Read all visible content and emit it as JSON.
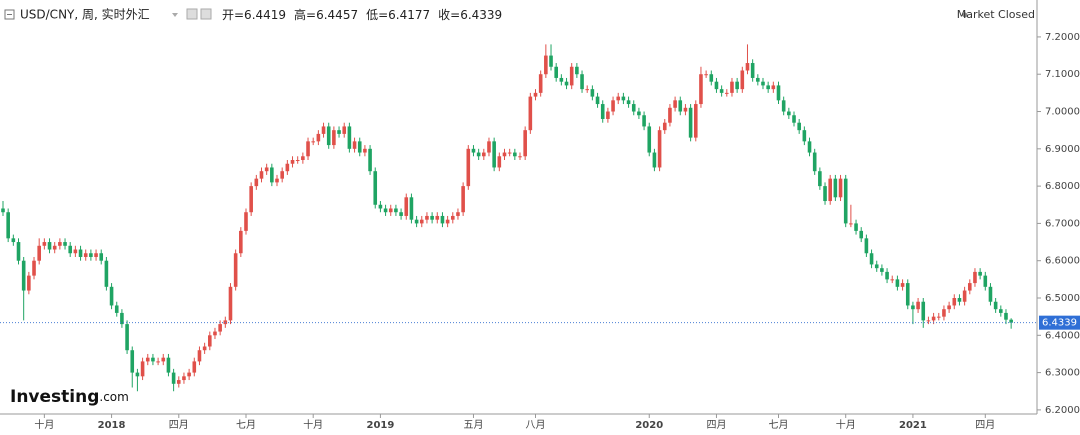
{
  "chart_data": {
    "type": "candlestick",
    "title": "USD/CNY, 周, 实时外汇",
    "ohlc_labels": [
      "开=6.4419",
      "高=6.4457",
      "低=6.4177",
      "收=6.4339"
    ],
    "status": "Market Closed",
    "logo": [
      "Investing",
      ".com"
    ],
    "last_price": 6.4339,
    "up_color": "#e0504a",
    "down_color": "#1fa463",
    "ylim": [
      6.189,
      7.299
    ],
    "yticks": [
      {
        "value": 6.2,
        "label": "6.2000"
      },
      {
        "value": 6.3,
        "label": "6.3000"
      },
      {
        "value": 6.4,
        "label": "6.4000"
      },
      {
        "value": 6.5,
        "label": "6.5000"
      },
      {
        "value": 6.6,
        "label": "6.6000"
      },
      {
        "value": 6.7,
        "label": "6.7000"
      },
      {
        "value": 6.8,
        "label": "6.8000"
      },
      {
        "value": 6.9,
        "label": "6.9000"
      },
      {
        "value": 7.0,
        "label": "7.0000"
      },
      {
        "value": 7.1,
        "label": "7.1000"
      },
      {
        "value": 7.2,
        "label": "7.2000"
      }
    ],
    "categories": [
      null,
      null,
      null,
      null,
      null,
      null,
      null,
      null,
      "十月",
      null,
      null,
      null,
      null,
      null,
      null,
      null,
      null,
      null,
      null,
      null,
      null,
      "2018",
      null,
      null,
      null,
      null,
      null,
      null,
      null,
      null,
      null,
      null,
      null,
      null,
      "四月",
      null,
      null,
      null,
      null,
      null,
      null,
      null,
      null,
      null,
      null,
      null,
      null,
      "七月",
      null,
      null,
      null,
      null,
      null,
      null,
      null,
      null,
      null,
      null,
      null,
      null,
      "十月",
      null,
      null,
      null,
      null,
      null,
      null,
      null,
      null,
      null,
      null,
      null,
      null,
      "2019",
      null,
      null,
      null,
      null,
      null,
      null,
      null,
      null,
      null,
      null,
      null,
      null,
      null,
      null,
      null,
      null,
      null,
      "五月",
      null,
      null,
      null,
      null,
      null,
      null,
      null,
      null,
      null,
      null,
      null,
      "八月",
      null,
      null,
      null,
      null,
      null,
      null,
      null,
      null,
      null,
      null,
      null,
      null,
      null,
      null,
      null,
      null,
      null,
      null,
      null,
      null,
      null,
      "2020",
      null,
      null,
      null,
      null,
      null,
      null,
      null,
      null,
      null,
      null,
      null,
      null,
      "四月",
      null,
      null,
      null,
      null,
      null,
      null,
      null,
      null,
      null,
      null,
      null,
      "七月",
      null,
      null,
      null,
      null,
      null,
      null,
      null,
      null,
      null,
      null,
      null,
      null,
      "十月",
      null,
      null,
      null,
      null,
      null,
      null,
      null,
      null,
      null,
      null,
      null,
      null,
      "2021",
      null,
      null,
      null,
      null,
      null,
      null,
      null,
      null,
      null,
      null,
      null,
      null,
      null,
      "四月",
      null,
      null,
      null,
      null,
      null
    ],
    "open": [
      6.74,
      6.73,
      6.66,
      6.65,
      6.6,
      6.52,
      6.56,
      6.6,
      6.64,
      6.65,
      6.63,
      6.64,
      6.65,
      6.64,
      6.62,
      6.63,
      6.61,
      6.62,
      6.61,
      6.62,
      6.6,
      6.53,
      6.48,
      6.46,
      6.43,
      6.36,
      6.3,
      6.29,
      6.33,
      6.34,
      6.33,
      6.33,
      6.34,
      6.3,
      6.27,
      6.28,
      6.29,
      6.3,
      6.33,
      6.36,
      6.37,
      6.4,
      6.41,
      6.43,
      6.44,
      6.53,
      6.62,
      6.68,
      6.73,
      6.8,
      6.82,
      6.84,
      6.85,
      6.81,
      6.82,
      6.84,
      6.86,
      6.87,
      6.87,
      6.88,
      6.92,
      6.92,
      6.94,
      6.96,
      6.91,
      6.95,
      6.94,
      6.96,
      6.9,
      6.92,
      6.89,
      6.9,
      6.84,
      6.75,
      6.74,
      6.73,
      6.74,
      6.73,
      6.72,
      6.77,
      6.71,
      6.7,
      6.71,
      6.72,
      6.71,
      6.72,
      6.7,
      6.71,
      6.72,
      6.73,
      6.8,
      6.9,
      6.89,
      6.88,
      6.89,
      6.92,
      6.85,
      6.88,
      6.89,
      6.89,
      6.88,
      6.88,
      6.95,
      7.04,
      7.05,
      7.1,
      7.15,
      7.12,
      7.09,
      7.08,
      7.07,
      7.12,
      7.1,
      7.06,
      7.06,
      7.04,
      7.02,
      6.98,
      7.0,
      7.03,
      7.04,
      7.03,
      7.02,
      7.0,
      6.99,
      6.96,
      6.89,
      6.85,
      6.95,
      6.97,
      7.01,
      7.03,
      7.0,
      7.01,
      6.93,
      7.02,
      7.1,
      7.1,
      7.08,
      7.06,
      7.05,
      7.05,
      7.08,
      7.06,
      7.11,
      7.13,
      7.09,
      7.08,
      7.07,
      7.06,
      7.07,
      7.03,
      7.0,
      6.99,
      6.97,
      6.95,
      6.92,
      6.89,
      6.84,
      6.8,
      6.76,
      6.82,
      6.77,
      6.82,
      6.7,
      6.7,
      6.68,
      6.66,
      6.62,
      6.59,
      6.58,
      6.57,
      6.55,
      6.55,
      6.53,
      6.54,
      6.48,
      6.47,
      6.49,
      6.44,
      6.44,
      6.45,
      6.45,
      6.47,
      6.48,
      6.5,
      6.49,
      6.52,
      6.54,
      6.57,
      6.56,
      6.53,
      6.49,
      6.47,
      6.46,
      6.4419
    ],
    "high": [
      6.76,
      6.74,
      6.67,
      6.66,
      6.61,
      6.57,
      6.61,
      6.66,
      6.66,
      6.66,
      6.65,
      6.66,
      6.66,
      6.65,
      6.64,
      6.64,
      6.63,
      6.63,
      6.63,
      6.63,
      6.61,
      6.54,
      6.49,
      6.47,
      6.44,
      6.37,
      6.31,
      6.34,
      6.35,
      6.35,
      6.34,
      6.35,
      6.35,
      6.31,
      6.29,
      6.3,
      6.31,
      6.34,
      6.37,
      6.38,
      6.41,
      6.42,
      6.44,
      6.45,
      6.54,
      6.63,
      6.69,
      6.74,
      6.81,
      6.83,
      6.85,
      6.86,
      6.86,
      6.83,
      6.85,
      6.87,
      6.88,
      6.88,
      6.89,
      6.93,
      6.93,
      6.95,
      6.97,
      6.97,
      6.96,
      6.96,
      6.97,
      6.97,
      6.93,
      6.93,
      6.91,
      6.91,
      6.85,
      6.76,
      6.75,
      6.75,
      6.75,
      6.74,
      6.78,
      6.78,
      6.72,
      6.72,
      6.73,
      6.73,
      6.73,
      6.73,
      6.72,
      6.73,
      6.74,
      6.81,
      6.91,
      6.91,
      6.9,
      6.9,
      6.93,
      6.93,
      6.89,
      6.9,
      6.9,
      6.9,
      6.89,
      6.96,
      7.05,
      7.06,
      7.11,
      7.18,
      7.18,
      7.13,
      7.1,
      7.09,
      7.13,
      7.13,
      7.11,
      7.07,
      7.07,
      7.05,
      7.03,
      7.01,
      7.04,
      7.05,
      7.05,
      7.04,
      7.03,
      7.01,
      7.0,
      6.97,
      6.9,
      6.96,
      6.98,
      7.02,
      7.04,
      7.04,
      7.02,
      7.02,
      7.03,
      7.12,
      7.11,
      7.11,
      7.09,
      7.07,
      7.06,
      7.09,
      7.09,
      7.12,
      7.18,
      7.14,
      7.1,
      7.09,
      7.08,
      7.08,
      7.08,
      7.04,
      7.01,
      7.0,
      6.98,
      6.96,
      6.93,
      6.9,
      6.85,
      6.81,
      6.83,
      6.83,
      6.83,
      6.83,
      6.75,
      6.71,
      6.69,
      6.67,
      6.63,
      6.6,
      6.59,
      6.58,
      6.56,
      6.56,
      6.55,
      6.55,
      6.49,
      6.5,
      6.5,
      6.45,
      6.46,
      6.46,
      6.48,
      6.49,
      6.51,
      6.51,
      6.53,
      6.55,
      6.58,
      6.58,
      6.57,
      6.54,
      6.5,
      6.48,
      6.47,
      6.4457
    ],
    "low": [
      6.72,
      6.65,
      6.64,
      6.59,
      6.44,
      6.51,
      6.55,
      6.59,
      6.63,
      6.62,
      6.62,
      6.63,
      6.63,
      6.61,
      6.61,
      6.6,
      6.6,
      6.6,
      6.6,
      6.59,
      6.52,
      6.47,
      6.45,
      6.42,
      6.35,
      6.26,
      6.25,
      6.28,
      6.32,
      6.32,
      6.32,
      6.32,
      6.29,
      6.25,
      6.26,
      6.27,
      6.28,
      6.29,
      6.32,
      6.35,
      6.36,
      6.39,
      6.4,
      6.42,
      6.43,
      6.52,
      6.61,
      6.67,
      6.72,
      6.79,
      6.81,
      6.83,
      6.8,
      6.8,
      6.81,
      6.83,
      6.85,
      6.86,
      6.86,
      6.87,
      6.91,
      6.91,
      6.93,
      6.9,
      6.9,
      6.93,
      6.93,
      6.89,
      6.89,
      6.88,
      6.88,
      6.83,
      6.74,
      6.73,
      6.72,
      6.72,
      6.72,
      6.71,
      6.71,
      6.7,
      6.69,
      6.69,
      6.7,
      6.7,
      6.7,
      6.69,
      6.69,
      6.7,
      6.71,
      6.72,
      6.79,
      6.88,
      6.87,
      6.87,
      6.88,
      6.84,
      6.84,
      6.87,
      6.88,
      6.87,
      6.87,
      6.87,
      6.94,
      7.03,
      7.04,
      7.09,
      7.11,
      7.08,
      7.07,
      7.06,
      7.06,
      7.09,
      7.05,
      7.05,
      7.03,
      7.01,
      6.97,
      6.97,
      6.99,
      7.02,
      7.02,
      7.01,
      6.99,
      6.98,
      6.95,
      6.88,
      6.84,
      6.84,
      6.94,
      6.96,
      7.0,
      6.99,
      6.99,
      6.92,
      6.92,
      7.01,
      7.09,
      7.07,
      7.05,
      7.04,
      7.04,
      7.04,
      7.05,
      7.05,
      7.1,
      7.08,
      7.07,
      7.06,
      7.05,
      7.05,
      7.02,
      6.99,
      6.98,
      6.96,
      6.94,
      6.91,
      6.88,
      6.83,
      6.79,
      6.75,
      6.75,
      6.76,
      6.76,
      6.69,
      6.69,
      6.67,
      6.65,
      6.61,
      6.58,
      6.57,
      6.56,
      6.54,
      6.54,
      6.52,
      6.52,
      6.47,
      6.43,
      6.46,
      6.42,
      6.43,
      6.43,
      6.44,
      6.44,
      6.46,
      6.47,
      6.48,
      6.48,
      6.51,
      6.53,
      6.55,
      6.52,
      6.48,
      6.46,
      6.45,
      6.43,
      6.4177
    ],
    "close": [
      6.73,
      6.66,
      6.65,
      6.6,
      6.52,
      6.56,
      6.6,
      6.64,
      6.65,
      6.63,
      6.64,
      6.65,
      6.64,
      6.62,
      6.63,
      6.61,
      6.62,
      6.61,
      6.62,
      6.6,
      6.53,
      6.48,
      6.46,
      6.43,
      6.36,
      6.3,
      6.29,
      6.33,
      6.34,
      6.33,
      6.33,
      6.34,
      6.3,
      6.27,
      6.28,
      6.29,
      6.3,
      6.33,
      6.36,
      6.37,
      6.4,
      6.41,
      6.43,
      6.44,
      6.53,
      6.62,
      6.68,
      6.73,
      6.8,
      6.82,
      6.84,
      6.85,
      6.81,
      6.82,
      6.84,
      6.86,
      6.87,
      6.87,
      6.88,
      6.92,
      6.92,
      6.94,
      6.96,
      6.91,
      6.95,
      6.94,
      6.96,
      6.9,
      6.92,
      6.89,
      6.9,
      6.84,
      6.75,
      6.74,
      6.73,
      6.74,
      6.73,
      6.72,
      6.77,
      6.71,
      6.7,
      6.71,
      6.72,
      6.71,
      6.72,
      6.7,
      6.71,
      6.72,
      6.73,
      6.8,
      6.9,
      6.89,
      6.88,
      6.89,
      6.92,
      6.85,
      6.88,
      6.89,
      6.89,
      6.88,
      6.88,
      6.95,
      7.04,
      7.05,
      7.1,
      7.15,
      7.12,
      7.09,
      7.08,
      7.07,
      7.12,
      7.1,
      7.06,
      7.06,
      7.04,
      7.02,
      6.98,
      7.0,
      7.03,
      7.04,
      7.03,
      7.02,
      7.0,
      6.99,
      6.96,
      6.89,
      6.85,
      6.95,
      6.97,
      7.01,
      7.03,
      7.0,
      7.01,
      6.93,
      7.02,
      7.1,
      7.1,
      7.08,
      7.06,
      7.05,
      7.05,
      7.08,
      7.06,
      7.11,
      7.13,
      7.09,
      7.08,
      7.07,
      7.06,
      7.07,
      7.03,
      7.0,
      6.99,
      6.97,
      6.95,
      6.92,
      6.89,
      6.84,
      6.8,
      6.76,
      6.82,
      6.77,
      6.82,
      6.7,
      6.7,
      6.68,
      6.66,
      6.62,
      6.59,
      6.58,
      6.57,
      6.55,
      6.55,
      6.53,
      6.54,
      6.48,
      6.47,
      6.49,
      6.44,
      6.44,
      6.45,
      6.45,
      6.47,
      6.48,
      6.5,
      6.49,
      6.52,
      6.54,
      6.57,
      6.56,
      6.53,
      6.49,
      6.47,
      6.46,
      6.4419,
      6.4339
    ]
  }
}
